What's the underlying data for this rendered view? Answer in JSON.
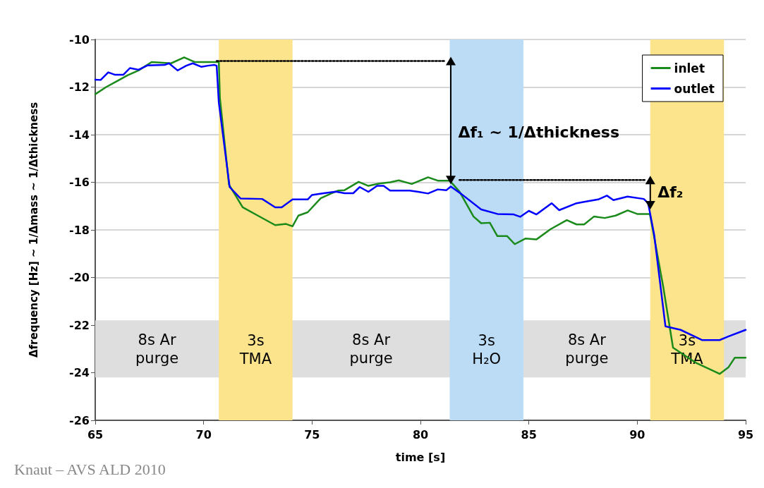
{
  "chart_data": {
    "type": "line",
    "xlabel": "time [s]",
    "ylabel": "Δfrequency [Hz] ~ 1/Δmass ~ 1/Δthickness",
    "xlim": [
      65,
      95
    ],
    "xticks": [
      65,
      70,
      75,
      80,
      85,
      90,
      95
    ],
    "ylim": [
      -26,
      -10
    ],
    "yticks": [
      -26,
      -24,
      -22,
      -20,
      -18,
      -16,
      -14,
      -12,
      -10
    ],
    "grid": "y",
    "legend": "top right",
    "marker": "none",
    "line_style": "solid",
    "series": [
      {
        "name": "inlet",
        "color": "#1a8a1a",
        "x": [
          65,
          65.5,
          66,
          66.5,
          67,
          67.6,
          68.5,
          69.1,
          69.6,
          70.5,
          70.7,
          70.75,
          71.17,
          71.8,
          72.5,
          73.3,
          73.8,
          74.1,
          74.37,
          74.8,
          75.4,
          75.9,
          76.2,
          76.5,
          77.15,
          77.6,
          78.1,
          78.6,
          79,
          79.6,
          80.35,
          80.8,
          81.35,
          81.8,
          82.45,
          82.8,
          83.2,
          83.55,
          84,
          84.35,
          84.85,
          85.35,
          86,
          86.75,
          87.2,
          87.55,
          88,
          88.5,
          89,
          89.56,
          90,
          90.58,
          90.78,
          91.2,
          91.65,
          92.7,
          93.8,
          94.2,
          94.5,
          95
        ],
        "values": [
          -12.3,
          -12,
          -11.75,
          -11.5,
          -11.3,
          -10.95,
          -11,
          -10.75,
          -10.95,
          -10.95,
          -10.95,
          -12.45,
          -16.1,
          -17.05,
          -17.4,
          -17.8,
          -17.75,
          -17.85,
          -17.4,
          -17.26,
          -16.67,
          -16.46,
          -16.35,
          -16.33,
          -15.98,
          -16.15,
          -16.05,
          -16,
          -15.92,
          -16.07,
          -15.79,
          -15.93,
          -15.93,
          -16.39,
          -17.44,
          -17.72,
          -17.7,
          -18.26,
          -18.26,
          -18.6,
          -18.36,
          -18.4,
          -17.97,
          -17.59,
          -17.77,
          -17.77,
          -17.44,
          -17.5,
          -17.4,
          -17.18,
          -17.33,
          -17.33,
          -18.3,
          -20.4,
          -22.95,
          -23.58,
          -24.05,
          -23.78,
          -23.37,
          -23.37
        ]
      },
      {
        "name": "outlet",
        "color": "#0000ff",
        "x": [
          65,
          65.25,
          65.6,
          65.9,
          66.3,
          66.6,
          67,
          67.4,
          68.2,
          68.4,
          68.8,
          69.2,
          69.5,
          69.9,
          70.2,
          70.5,
          70.6,
          70.7,
          71.2,
          71.7,
          72.7,
          73.3,
          73.6,
          74.1,
          74.8,
          75,
          75.54,
          76.1,
          76.5,
          76.9,
          77.2,
          77.6,
          78,
          78.3,
          78.6,
          79.5,
          79.9,
          80.35,
          80.8,
          81.2,
          81.4,
          81.9,
          82.8,
          83.55,
          84.3,
          84.6,
          85,
          85.35,
          86.05,
          86.4,
          87.2,
          87.55,
          88.2,
          88.6,
          88.9,
          89.55,
          90.3,
          90.5,
          90.78,
          91.3,
          92,
          93,
          93.8,
          94.2,
          95
        ],
        "values": [
          -11.69,
          -11.7,
          -11.38,
          -11.48,
          -11.48,
          -11.2,
          -11.27,
          -11.09,
          -11.07,
          -11,
          -11.3,
          -11.1,
          -11,
          -11.15,
          -11.1,
          -11.07,
          -11.1,
          -12.65,
          -16.2,
          -16.68,
          -16.7,
          -17.05,
          -17.05,
          -16.72,
          -16.72,
          -16.53,
          -16.46,
          -16.39,
          -16.46,
          -16.46,
          -16.2,
          -16.4,
          -16.15,
          -16.15,
          -16.35,
          -16.35,
          -16.4,
          -16.47,
          -16.3,
          -16.33,
          -16.18,
          -16.5,
          -17.14,
          -17.33,
          -17.35,
          -17.45,
          -17.2,
          -17.35,
          -16.88,
          -17.17,
          -16.88,
          -16.82,
          -16.72,
          -16.56,
          -16.75,
          -16.6,
          -16.7,
          -16.87,
          -18.2,
          -22.05,
          -22.2,
          -22.63,
          -22.63,
          -22.48,
          -22.2
        ]
      },
      {
        "color": "#000000",
        "line_style": "dotted",
        "marker": "none",
        "x": [
          70.6,
          81.15
        ],
        "values": [
          -10.9,
          -10.9
        ]
      },
      {
        "color": "#000000",
        "line_style": "dotted",
        "marker": "none",
        "x": [
          81.8,
          90.35
        ],
        "values": [
          -15.9,
          -15.9
        ]
      },
      {
        "color": "#000000",
        "line_style": "solid",
        "marker": "triangle",
        "x": [
          81.4,
          81.4
        ],
        "values": [
          -10.9,
          -15.9
        ]
      },
      {
        "color": "#000000",
        "line_style": "solid",
        "marker": "triangle",
        "x": [
          90.6,
          90.6
        ],
        "values": [
          -15.9,
          -16.96
        ]
      }
    ],
    "bands": [
      {
        "axis": "y",
        "from": -24.2,
        "to": -21.8,
        "color": "#dedede"
      },
      {
        "axis": "x",
        "from": 70.7,
        "to": 74.1,
        "label": "3s\nTMA",
        "color": "#fce48c"
      },
      {
        "axis": "x",
        "from": 81.35,
        "to": 84.75,
        "label": "3s\nH₂O",
        "color": "#bcdcf6"
      },
      {
        "axis": "x",
        "from": 90.6,
        "to": 94,
        "label": "3s\nTMA",
        "color": "#fce48c"
      }
    ],
    "annotations": [
      "8s Ar\npurge",
      "8s Ar\npurge",
      "8s Ar\npurge",
      {
        "text": "Δf₁ ~ 1/Δthickness",
        "x": 81.4,
        "y": -13.9
      },
      {
        "text": "Δf₂",
        "x": 90.6,
        "y": -16.4
      },
      "Knaut – AVS ALD 2010"
    ]
  }
}
